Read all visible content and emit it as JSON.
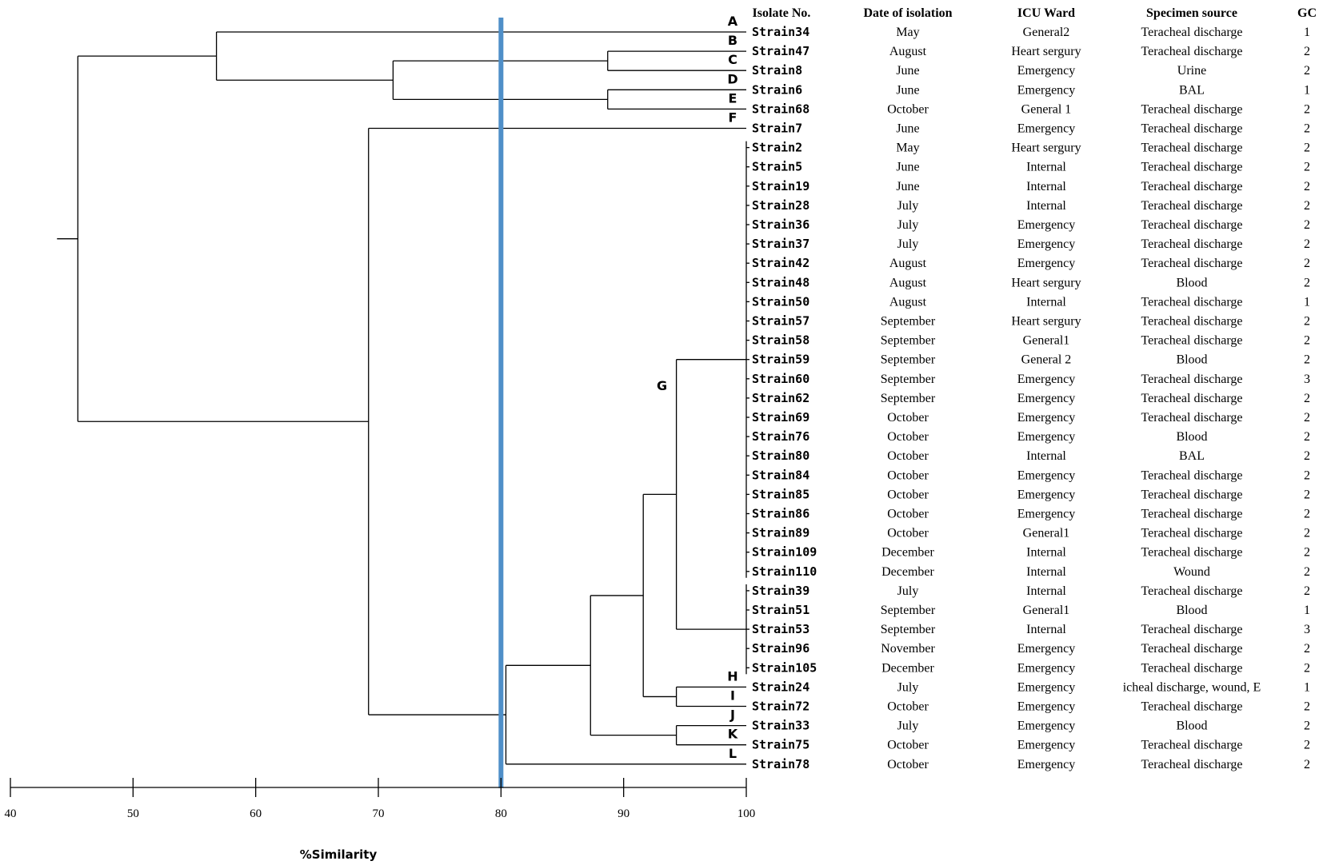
{
  "columns": {
    "isolate": "Isolate No.",
    "date": "Date of isolation",
    "ward": "ICU Ward",
    "source": "Specimen source",
    "gc": "GC"
  },
  "rows": [
    {
      "strain": "Strain34",
      "date": "May",
      "ward": "General2",
      "source": "Teracheal discharge",
      "gc": "1"
    },
    {
      "strain": "Strain47",
      "date": "August",
      "ward": "Heart sergury",
      "source": "Teracheal discharge",
      "gc": "2"
    },
    {
      "strain": "Strain8",
      "date": "June",
      "ward": "Emergency",
      "source": "Urine",
      "gc": "2"
    },
    {
      "strain": "Strain6",
      "date": "June",
      "ward": "Emergency",
      "source": "BAL",
      "gc": "1"
    },
    {
      "strain": "Strain68",
      "date": "October",
      "ward": "General 1",
      "source": "Teracheal discharge",
      "gc": "2"
    },
    {
      "strain": "Strain7",
      "date": "June",
      "ward": "Emergency",
      "source": "Teracheal discharge",
      "gc": "2"
    },
    {
      "strain": "Strain2",
      "date": "May",
      "ward": "Heart sergury",
      "source": "Teracheal discharge",
      "gc": "2"
    },
    {
      "strain": "Strain5",
      "date": "June",
      "ward": "Internal",
      "source": "Teracheal discharge",
      "gc": "2"
    },
    {
      "strain": "Strain19",
      "date": "June",
      "ward": "Internal",
      "source": "Teracheal discharge",
      "gc": "2"
    },
    {
      "strain": "Strain28",
      "date": "July",
      "ward": "Internal",
      "source": "Teracheal discharge",
      "gc": "2"
    },
    {
      "strain": "Strain36",
      "date": "July",
      "ward": "Emergency",
      "source": "Teracheal discharge",
      "gc": "2"
    },
    {
      "strain": "Strain37",
      "date": "July",
      "ward": "Emergency",
      "source": "Teracheal discharge",
      "gc": "2"
    },
    {
      "strain": "Strain42",
      "date": "August",
      "ward": "Emergency",
      "source": "Teracheal discharge",
      "gc": "2"
    },
    {
      "strain": "Strain48",
      "date": "August",
      "ward": "Heart sergury",
      "source": "Blood",
      "gc": "2"
    },
    {
      "strain": "Strain50",
      "date": "August",
      "ward": "Internal",
      "source": "Teracheal discharge",
      "gc": "1"
    },
    {
      "strain": "Strain57",
      "date": "September",
      "ward": "Heart sergury",
      "source": "Teracheal discharge",
      "gc": "2"
    },
    {
      "strain": "Strain58",
      "date": "September",
      "ward": "General1",
      "source": "Teracheal discharge",
      "gc": "2"
    },
    {
      "strain": "Strain59",
      "date": "September",
      "ward": "General 2",
      "source": "Blood",
      "gc": "2"
    },
    {
      "strain": "Strain60",
      "date": "September",
      "ward": "Emergency",
      "source": "Teracheal discharge",
      "gc": "3"
    },
    {
      "strain": "Strain62",
      "date": "September",
      "ward": "Emergency",
      "source": "Teracheal discharge",
      "gc": "2"
    },
    {
      "strain": "Strain69",
      "date": "October",
      "ward": "Emergency",
      "source": "Teracheal discharge",
      "gc": "2"
    },
    {
      "strain": "Strain76",
      "date": "October",
      "ward": "Emergency",
      "source": "Blood",
      "gc": "2"
    },
    {
      "strain": "Strain80",
      "date": "October",
      "ward": "Internal",
      "source": "BAL",
      "gc": "2"
    },
    {
      "strain": "Strain84",
      "date": "October",
      "ward": "Emergency",
      "source": "Teracheal discharge",
      "gc": "2"
    },
    {
      "strain": "Strain85",
      "date": "October",
      "ward": "Emergency",
      "source": "Teracheal discharge",
      "gc": "2"
    },
    {
      "strain": "Strain86",
      "date": "October",
      "ward": "Emergency",
      "source": "Teracheal discharge",
      "gc": "2"
    },
    {
      "strain": "Strain89",
      "date": "October",
      "ward": "General1",
      "source": "Teracheal discharge",
      "gc": "2"
    },
    {
      "strain": "Strain109",
      "date": "December",
      "ward": "Internal",
      "source": "Teracheal discharge",
      "gc": "2"
    },
    {
      "strain": "Strain110",
      "date": "December",
      "ward": "Internal",
      "source": "Wound",
      "gc": "2"
    },
    {
      "strain": "Strain39",
      "date": "July",
      "ward": "Internal",
      "source": "Teracheal discharge",
      "gc": "2"
    },
    {
      "strain": "Strain51",
      "date": "September",
      "ward": "General1",
      "source": "Blood",
      "gc": "1"
    },
    {
      "strain": "Strain53",
      "date": "September",
      "ward": "Internal",
      "source": "Teracheal discharge",
      "gc": "3"
    },
    {
      "strain": "Strain96",
      "date": "November",
      "ward": "Emergency",
      "source": "Teracheal discharge",
      "gc": "2"
    },
    {
      "strain": "Strain105",
      "date": "December",
      "ward": "Emergency",
      "source": "Teracheal discharge",
      "gc": "2"
    },
    {
      "strain": "Strain24",
      "date": "July",
      "ward": "Emergency",
      "source": "icheal discharge, wound, E",
      "gc": "1"
    },
    {
      "strain": "Strain72",
      "date": "October",
      "ward": "Emergency",
      "source": "Teracheal discharge",
      "gc": "2"
    },
    {
      "strain": "Strain33",
      "date": "July",
      "ward": "Emergency",
      "source": "Blood",
      "gc": "2"
    },
    {
      "strain": "Strain75",
      "date": "October",
      "ward": "Emergency",
      "source": "Teracheal discharge",
      "gc": "2"
    },
    {
      "strain": "Strain78",
      "date": "October",
      "ward": "Emergency",
      "source": "Teracheal discharge",
      "gc": "2"
    }
  ],
  "tree": {
    "leaf_tip_similarity": 100,
    "cutoff_similarity": 80,
    "cutoff_color": "#4f8fc8",
    "root_similarity": 43.8,
    "nodes": [
      {
        "id": "n_b_c",
        "children": [
          1,
          2
        ],
        "similarity": 88.7
      },
      {
        "id": "n_d_e",
        "children": [
          3,
          4
        ],
        "similarity": 88.7
      },
      {
        "id": "n_bc_de",
        "children": [
          "n_b_c",
          "n_d_e"
        ],
        "similarity": 71.2
      },
      {
        "id": "n_a_bcde",
        "children": [
          0,
          "n_bc_de"
        ],
        "similarity": 56.8
      },
      {
        "id": "n_g_main",
        "range": [
          6,
          28
        ],
        "similarity": 100
      },
      {
        "id": "n_g_sub",
        "range": [
          29,
          33
        ],
        "similarity": 100
      },
      {
        "id": "n_g",
        "children": [
          "n_g_main",
          "n_g_sub"
        ],
        "similarity": 94.3
      },
      {
        "id": "n_h_i",
        "children": [
          34,
          35
        ],
        "similarity": 94.3
      },
      {
        "id": "n_g_hi",
        "children": [
          "n_g",
          "n_h_i"
        ],
        "similarity": 91.6
      },
      {
        "id": "n_j_k",
        "children": [
          36,
          37
        ],
        "similarity": 94.3
      },
      {
        "id": "n_ghi_jk",
        "children": [
          "n_g_hi",
          "n_j_k"
        ],
        "similarity": 87.3
      },
      {
        "id": "n_big_l",
        "children": [
          "n_ghi_jk",
          38
        ],
        "similarity": 80.4
      },
      {
        "id": "n_f_big",
        "children": [
          5,
          "n_big_l"
        ],
        "similarity": 69.2
      },
      {
        "id": "n_root",
        "children": [
          "n_a_bcde",
          "n_f_big"
        ],
        "similarity": 45.5
      }
    ]
  },
  "cluster_labels": [
    {
      "label": "A",
      "row": 0,
      "pos": "above"
    },
    {
      "label": "B",
      "row": 1,
      "pos": "above"
    },
    {
      "label": "C",
      "row": 2,
      "pos": "above"
    },
    {
      "label": "D",
      "row": 3,
      "pos": "above"
    },
    {
      "label": "E",
      "row": 4,
      "pos": "above"
    },
    {
      "label": "F",
      "row": 5,
      "pos": "above"
    },
    {
      "label": "G",
      "row": 18.5,
      "pos": "node"
    },
    {
      "label": "H",
      "row": 34,
      "pos": "above"
    },
    {
      "label": "I",
      "row": 35,
      "pos": "above"
    },
    {
      "label": "J",
      "row": 36,
      "pos": "above"
    },
    {
      "label": "K",
      "row": 37,
      "pos": "above"
    },
    {
      "label": "L",
      "row": 38,
      "pos": "above"
    }
  ],
  "axis": {
    "ticks": [
      40,
      50,
      60,
      70,
      80,
      90,
      100
    ],
    "range": [
      40,
      100
    ],
    "label": "%Similarity"
  }
}
